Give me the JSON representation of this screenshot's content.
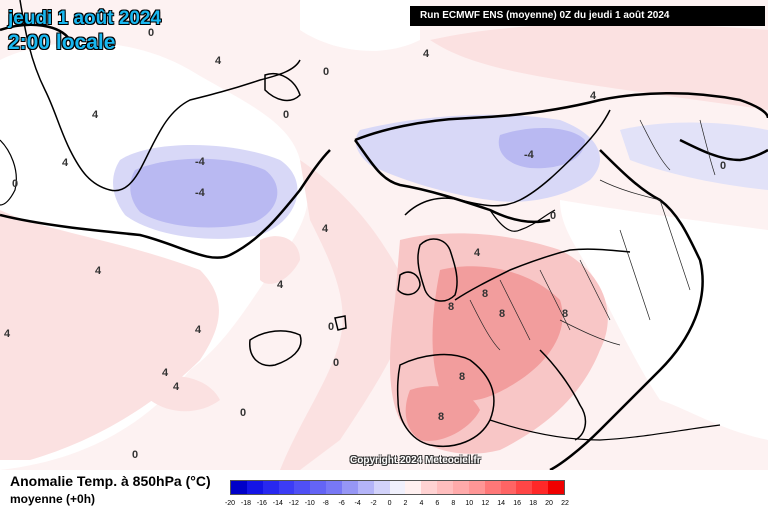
{
  "header": {
    "date_line1": "jeudi 1 août 2024",
    "date_line2": "2:00 locale",
    "run_info": "Run ECMWF ENS (moyenne) 0Z du jeudi 1 août 2024"
  },
  "copyright": "Copyright 2024 Meteociel.fr",
  "legend": {
    "title": "Anomalie Temp. à 850hPa (°C)",
    "subtitle": "moyenne   (+0h)",
    "scale_labels": [
      "-20",
      "-18",
      "-16",
      "-14",
      "-12",
      "-10",
      "-8",
      "-6",
      "-4",
      "-2",
      "0",
      "2",
      "4",
      "6",
      "8",
      "10",
      "12",
      "14",
      "16",
      "18",
      "20",
      "22"
    ],
    "scale_colors": [
      "#0000c8",
      "#1414e6",
      "#2828f0",
      "#3c3cf5",
      "#5050f5",
      "#6464f5",
      "#7878f5",
      "#9696f5",
      "#b4b4f8",
      "#d2d2fa",
      "#f0f0fc",
      "#fff0f0",
      "#ffd2d2",
      "#ffbebe",
      "#ffaaaa",
      "#ff9696",
      "#ff7878",
      "#ff6464",
      "#ff4646",
      "#ff2828",
      "#f00000"
    ]
  },
  "map": {
    "contour_labels": [
      "4",
      "0",
      "0",
      "4",
      "0",
      "4",
      "4",
      "-4",
      "-4",
      "0",
      "4",
      "4",
      "4",
      "0",
      "4",
      "0",
      "4",
      "4",
      "4",
      "8",
      "8",
      "8",
      "8",
      "8",
      "8",
      "0",
      "4",
      "0",
      "4",
      "0",
      "-4",
      "0"
    ],
    "colors": {
      "ocean_white": "#ffffff",
      "warm_light": "#fbe1e1",
      "warm_mid": "#f8c6c6",
      "warm_strong": "#f29d9d",
      "cold_light": "#d8d8f7",
      "cold_mid": "#b9b9f2",
      "coast": "#000000"
    }
  }
}
